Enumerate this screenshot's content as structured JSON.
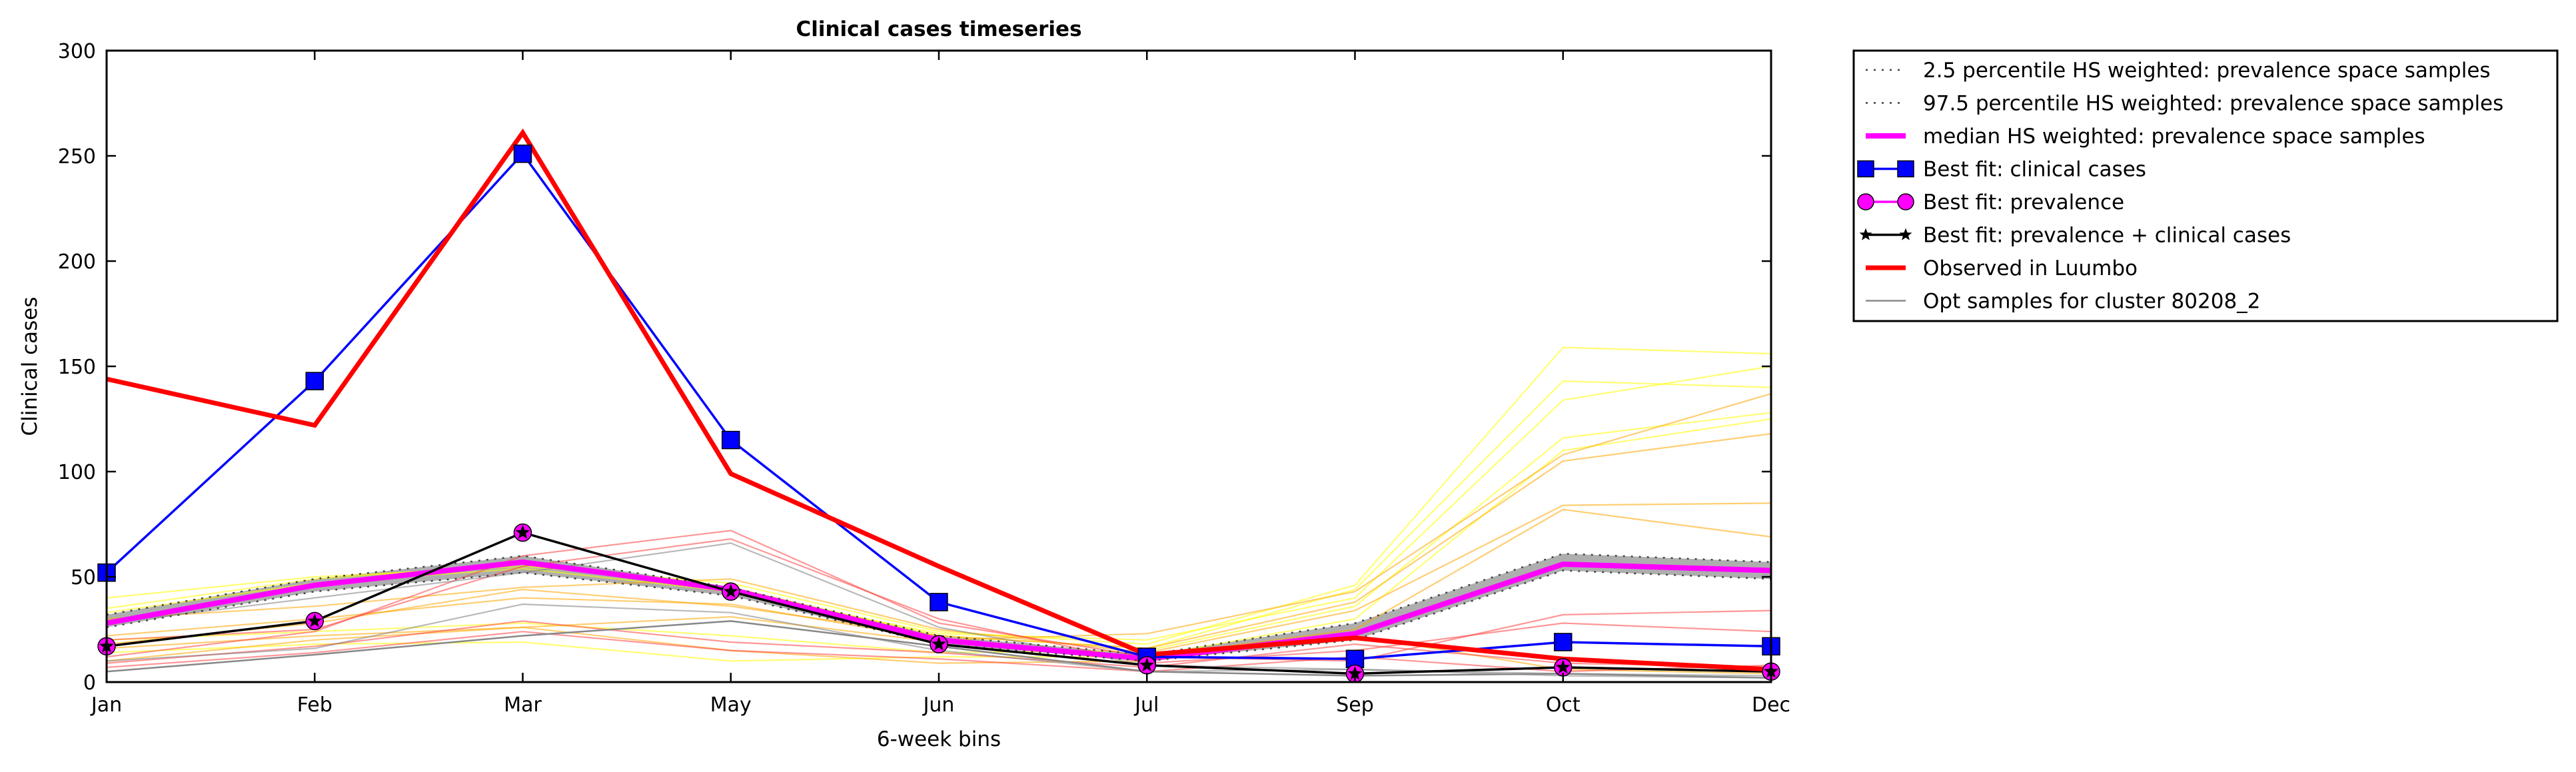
{
  "chart_data": {
    "type": "line",
    "title": "Clinical cases timeseries",
    "xlabel": "6-week bins",
    "ylabel": "Clinical cases",
    "categories": [
      "Jan",
      "Feb",
      "Mar",
      "May",
      "Jun",
      "Jul",
      "Sep",
      "Oct",
      "Dec"
    ],
    "ylim": [
      0,
      300
    ],
    "yticks": [
      0,
      50,
      100,
      150,
      200,
      250,
      300
    ],
    "grid": false,
    "legend_position": "outside-top-right",
    "band": {
      "lower": [
        26,
        43,
        52,
        41,
        18,
        10,
        20,
        53,
        49
      ],
      "upper": [
        32,
        49,
        60,
        45,
        22,
        13,
        28,
        61,
        57
      ],
      "fill_color": "#a0a0a0"
    },
    "series": [
      {
        "name": "2.5 percentile HS weighted: prevalence space samples",
        "style": "dotted",
        "color": "#444444",
        "values": [
          26,
          43,
          52,
          41,
          18,
          10,
          20,
          53,
          49
        ]
      },
      {
        "name": "97.5 percentile HS weighted: prevalence space samples",
        "style": "dotted",
        "color": "#444444",
        "values": [
          32,
          49,
          60,
          45,
          22,
          13,
          28,
          61,
          57
        ]
      },
      {
        "name": "median HS weighted: prevalence space samples",
        "style": "thick",
        "color": "#ff00ff",
        "values": [
          28,
          46,
          57,
          44,
          20,
          11,
          23,
          56,
          53
        ]
      },
      {
        "name": "Best fit: clinical cases",
        "style": "square-marker",
        "color": "#0000ff",
        "marker_fill": "#0000ff",
        "values": [
          52,
          143,
          251,
          115,
          38,
          12,
          11,
          19,
          17
        ]
      },
      {
        "name": "Best fit: prevalence",
        "style": "circle-marker",
        "color": "#ff00ff",
        "marker_fill": "#ff00ff",
        "values": [
          17,
          29,
          71,
          43,
          18,
          8,
          4,
          7,
          5
        ]
      },
      {
        "name": "Best fit: prevalence + clinical cases",
        "style": "star-marker",
        "color": "#000000",
        "values": [
          17,
          29,
          71,
          43,
          18,
          8,
          4,
          7,
          5
        ]
      },
      {
        "name": "Observed in Luumbo",
        "style": "bold",
        "color": "#ff0000",
        "values": [
          144,
          122,
          261,
          99,
          55,
          13,
          21,
          11,
          6
        ]
      },
      {
        "name": "Opt samples for cluster 80208_2",
        "style": "thin",
        "color": "#888888",
        "values": [
          5,
          13,
          22,
          29,
          17,
          5,
          3,
          4,
          2
        ]
      }
    ],
    "sample_lines": [
      {
        "color": "#ffff00",
        "values": [
          40,
          50,
          55,
          47,
          24,
          18,
          46,
          159,
          156
        ]
      },
      {
        "color": "#ffff00",
        "values": [
          35,
          49,
          56,
          45,
          22,
          16,
          44,
          143,
          140
        ]
      },
      {
        "color": "#ffff00",
        "values": [
          33,
          47,
          54,
          43,
          23,
          20,
          40,
          134,
          150
        ]
      },
      {
        "color": "#ffff00",
        "values": [
          20,
          24,
          28,
          22,
          14,
          15,
          36,
          116,
          128
        ]
      },
      {
        "color": "#ffff00",
        "values": [
          14,
          18,
          19,
          10,
          12,
          12,
          30,
          110,
          125
        ]
      },
      {
        "color": "#ffa500",
        "values": [
          22,
          30,
          40,
          37,
          20,
          23,
          43,
          108,
          137
        ]
      },
      {
        "color": "#ffa500",
        "values": [
          18,
          28,
          44,
          36,
          22,
          16,
          38,
          105,
          118
        ]
      },
      {
        "color": "#ffa500",
        "values": [
          30,
          36,
          45,
          49,
          25,
          14,
          34,
          84,
          85
        ]
      },
      {
        "color": "#ffa500",
        "values": [
          16,
          22,
          26,
          31,
          19,
          12,
          25,
          82,
          69
        ]
      },
      {
        "color": "#ffa500",
        "values": [
          10,
          20,
          26,
          15,
          9,
          10,
          22,
          6,
          4
        ]
      },
      {
        "color": "#ff4040",
        "values": [
          12,
          24,
          60,
          72,
          28,
          12,
          10,
          32,
          34
        ]
      },
      {
        "color": "#ff4040",
        "values": [
          20,
          25,
          55,
          68,
          30,
          9,
          15,
          28,
          24
        ]
      },
      {
        "color": "#ff4040",
        "values": [
          9,
          17,
          29,
          19,
          14,
          7,
          18,
          9,
          7
        ]
      },
      {
        "color": "#ff4040",
        "values": [
          7,
          14,
          24,
          15,
          11,
          5,
          12,
          5,
          8
        ]
      },
      {
        "color": "#808080",
        "values": [
          28,
          40,
          52,
          66,
          26,
          8,
          6,
          4,
          3
        ]
      },
      {
        "color": "#808080",
        "values": [
          10,
          16,
          37,
          33,
          15,
          5,
          6,
          3,
          2
        ]
      },
      {
        "color": "#808080",
        "values": [
          5,
          13,
          22,
          29,
          17,
          5,
          3,
          4,
          2
        ]
      }
    ]
  }
}
